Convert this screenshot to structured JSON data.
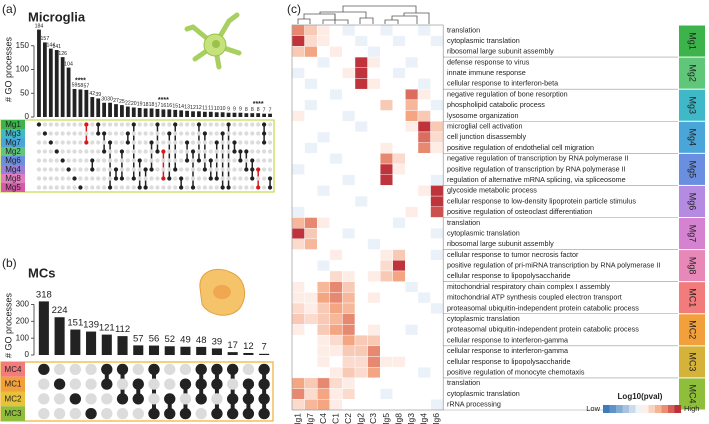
{
  "chart_data": [
    {
      "type": "upset",
      "panel": "(a)",
      "title": "Microglia",
      "y_label": "# GO processes",
      "ylim": [
        0,
        200
      ],
      "yticks": [
        0,
        50,
        100,
        150
      ],
      "values": [
        184,
        157,
        144,
        141,
        126,
        104,
        59,
        58,
        57,
        42,
        39,
        30,
        30,
        27,
        25,
        22,
        20,
        19,
        18,
        18,
        17,
        16,
        16,
        15,
        14,
        13,
        12,
        12,
        11,
        11,
        10,
        10,
        9,
        9,
        9,
        8,
        8,
        8,
        7,
        7
      ],
      "set_names": [
        {
          "name": "Mg1",
          "color": "#3cb44b"
        },
        {
          "name": "Mg3",
          "color": "#3fb8c7"
        },
        {
          "name": "Mg7",
          "color": "#4aa6d8"
        },
        {
          "name": "Mg2",
          "color": "#5fc67a"
        },
        {
          "name": "Mg6",
          "color": "#6a8fe0"
        },
        {
          "name": "Mg4",
          "color": "#9b7fd8"
        },
        {
          "name": "Mg8",
          "color": "#e07fc0"
        },
        {
          "name": "Mg5",
          "color": "#d65aa8"
        }
      ],
      "sets": [
        [
          0
        ],
        [
          1
        ],
        [
          2
        ],
        [
          3
        ],
        [
          4
        ],
        [
          5
        ],
        [
          6
        ],
        [
          7
        ],
        [
          0,
          2
        ],
        [
          4,
          5
        ],
        [
          0,
          1
        ],
        [
          1,
          3
        ],
        [
          2,
          7
        ],
        [
          5,
          6
        ],
        [
          3,
          6
        ],
        [
          1,
          2
        ],
        [
          0,
          6
        ],
        [
          4,
          7
        ],
        [
          5,
          7
        ],
        [
          2,
          5
        ],
        [
          0,
          3
        ],
        [
          3,
          6
        ],
        [
          1,
          6
        ],
        [
          0,
          5
        ],
        [
          6,
          7
        ],
        [
          2,
          4
        ],
        [
          3,
          7
        ],
        [
          0,
          4
        ],
        [
          1,
          5
        ],
        [
          4,
          6
        ],
        [
          2,
          6
        ],
        [
          1,
          7
        ],
        [
          0,
          7
        ],
        [
          2,
          3
        ],
        [
          3,
          4
        ],
        [
          3,
          5
        ],
        [
          4,
          5,
          6
        ],
        [
          5,
          7
        ],
        [
          0,
          1,
          2
        ],
        [
          6,
          7
        ]
      ],
      "highlighted": [
        8,
        21,
        37
      ],
      "highlight_color": "#d7191c",
      "bar_color": "#222222",
      "matrix_border": "#c8d84a",
      "annotations": [
        {
          "text": "****",
          "index": 7
        },
        {
          "text": "****",
          "index": 21
        },
        {
          "text": "****",
          "index": 37
        }
      ]
    },
    {
      "type": "upset",
      "panel": "(b)",
      "title": "MCs",
      "y_label": "# GO processes",
      "ylim": [
        0,
        350
      ],
      "yticks": [
        0,
        100,
        200,
        300
      ],
      "values": [
        318,
        224,
        151,
        139,
        121,
        112,
        57,
        56,
        52,
        49,
        48,
        39,
        17,
        12,
        7
      ],
      "set_names": [
        {
          "name": "MC4",
          "color": "#f27c7c"
        },
        {
          "name": "MC1",
          "color": "#f2a03c"
        },
        {
          "name": "MC2",
          "color": "#e8c23a"
        },
        {
          "name": "MC3",
          "color": "#8fbf3a"
        }
      ],
      "sets": [
        [
          0
        ],
        [
          1
        ],
        [
          2
        ],
        [
          3
        ],
        [
          0,
          1
        ],
        [
          0,
          2
        ],
        [
          1,
          2
        ],
        [
          0,
          3
        ],
        [
          2,
          3
        ],
        [
          1,
          3
        ],
        [
          0,
          1,
          2
        ],
        [
          0,
          1,
          3
        ],
        [
          0,
          2,
          3
        ],
        [
          1,
          2,
          3
        ],
        [
          0,
          1,
          2,
          3
        ]
      ],
      "highlighted": [],
      "highlight_color": "#d7191c",
      "bar_color": "#222222",
      "matrix_border": "#f0b030",
      "annotations": []
    },
    {
      "type": "heatmap",
      "panel": "(c)",
      "legend_title": "Log10(pval)",
      "legend_low": "Low",
      "legend_high": "High",
      "clim": [
        -1,
        1
      ],
      "low_color": "#2c6fb5",
      "high_color": "#b2182b",
      "columns": [
        "Mg1",
        "Mg7",
        "MC4",
        "MC1",
        "MC2",
        "Mg2",
        "MC3",
        "Mg5",
        "Mg8",
        "Mg3",
        "Mg4",
        "Mg6"
      ],
      "groups": [
        {
          "name": "Mg1",
          "color": "#3cb44b",
          "terms": [
            "translation",
            "cytoplasmic translation",
            "ribosomal large subunit assembly"
          ],
          "values": [
            [
              0.6,
              0.3,
              0.1,
              0,
              -0.1,
              0,
              0,
              -0.1,
              0,
              0,
              -0.1,
              0
            ],
            [
              0.9,
              0.2,
              0.1,
              0,
              0,
              -0.1,
              0,
              0,
              -0.1,
              0,
              0,
              -0.1
            ],
            [
              0.3,
              0.5,
              0,
              0.1,
              0,
              0,
              -0.1,
              0,
              0,
              0,
              0,
              0
            ]
          ]
        },
        {
          "name": "Mg2",
          "color": "#5fc67a",
          "terms": [
            "defense response to virus",
            "innate immune response",
            "cellular response to interferon-beta"
          ],
          "values": [
            [
              0,
              0,
              -0.1,
              0,
              0,
              0.9,
              0.1,
              0,
              0,
              -0.1,
              0,
              0
            ],
            [
              -0.1,
              0,
              0,
              0,
              0.1,
              0.9,
              0,
              0,
              -0.1,
              0,
              0,
              0
            ],
            [
              0,
              -0.1,
              0,
              0,
              0,
              0.9,
              0.1,
              0,
              0,
              0,
              -0.1,
              0
            ]
          ]
        },
        {
          "name": "Mg3",
          "color": "#3fb8c7",
          "terms": [
            "negative regulation of bone resorption",
            "phospholipid catabolic process",
            "lysosome organization"
          ],
          "values": [
            [
              0,
              0,
              0,
              -0.1,
              0,
              0,
              0,
              0,
              0,
              0.7,
              0.1,
              0
            ],
            [
              0,
              -0.1,
              0,
              0,
              0,
              0,
              0,
              0.3,
              0,
              0.4,
              0,
              -0.1
            ],
            [
              0.1,
              0,
              0,
              0,
              -0.1,
              0,
              0,
              0,
              0,
              0.5,
              0.3,
              0
            ]
          ]
        },
        {
          "name": "Mg4",
          "color": "#4aa6d8",
          "terms": [
            "microglial cell activation",
            "cell junction disassembly",
            "positive regulation of endothelial cell migration"
          ],
          "values": [
            [
              0,
              0,
              0,
              0,
              0,
              -0.1,
              0,
              0,
              0,
              0.1,
              0.9,
              0.3
            ],
            [
              0,
              0,
              -0.1,
              0,
              0,
              0,
              0,
              0,
              0,
              0,
              0.7,
              0.2
            ],
            [
              0,
              -0.1,
              0,
              0,
              0,
              0,
              0,
              0.1,
              0,
              0,
              0.6,
              0.1
            ]
          ]
        },
        {
          "name": "Mg5",
          "color": "#6a8fe0",
          "terms": [
            "negative regulation of transcription by RNA polymerase II",
            "positive regulation of transcription by RNA polymerase II",
            "regulation of alternative mRNA splicing, via spliceosome"
          ],
          "values": [
            [
              0,
              0,
              0,
              -0.1,
              0,
              0,
              0,
              0.6,
              0.2,
              0,
              0,
              0
            ],
            [
              -0.1,
              0,
              0,
              0,
              0,
              0,
              0,
              0.9,
              0.1,
              0,
              0,
              0
            ],
            [
              0,
              0,
              0,
              0,
              -0.1,
              0,
              0,
              0.9,
              0,
              0,
              0,
              -0.1
            ]
          ]
        },
        {
          "name": "Mg6",
          "color": "#b48be0",
          "terms": [
            "glycoside metabolic process",
            "cellular response to low-density lipoprotein particle stimulus",
            "positive regulation of osteoclast differentiation"
          ],
          "values": [
            [
              0,
              0,
              -0.1,
              0,
              0,
              0,
              0,
              0,
              0,
              0,
              0.1,
              0.9
            ],
            [
              0,
              0,
              0,
              0,
              0,
              -0.1,
              0,
              0,
              0,
              0,
              0,
              0.9
            ],
            [
              -0.1,
              0,
              0,
              0,
              0,
              0,
              0,
              0,
              0,
              0.1,
              0,
              0.8
            ]
          ]
        },
        {
          "name": "Mg7",
          "color": "#d583d0",
          "terms": [
            "translation",
            "cytoplasmic translation",
            "ribosomal large subunit assembly"
          ],
          "values": [
            [
              0.4,
              0.6,
              0.1,
              0,
              0,
              0,
              0,
              0,
              -0.1,
              0,
              0,
              0
            ],
            [
              0.9,
              0.3,
              0,
              0,
              -0.1,
              0,
              0,
              0,
              0,
              0,
              0,
              -0.1
            ],
            [
              0.2,
              0.4,
              0,
              0,
              0,
              0,
              -0.1,
              0,
              0,
              0,
              0,
              0
            ]
          ]
        },
        {
          "name": "Mg8",
          "color": "#e888b8",
          "terms": [
            "cellular response to tumor necrosis factor",
            "positive regulation of pri-miRNA transcription by RNA polymerase II",
            "cellular response to lipopolysaccharide"
          ],
          "values": [
            [
              0,
              0,
              0,
              0.1,
              0,
              0,
              0,
              0.1,
              0.3,
              0,
              0,
              -0.1
            ],
            [
              0,
              0,
              -0.1,
              0,
              0,
              0,
              0,
              0.2,
              0.9,
              0,
              0,
              0
            ],
            [
              0,
              0,
              0,
              0.2,
              0.1,
              0,
              0.1,
              0.3,
              0.5,
              0,
              0,
              0
            ]
          ]
        },
        {
          "name": "MC1",
          "color": "#f27c7c",
          "terms": [
            "mitochondrial respiratory chain complex I assembly",
            "mitochondrial ATP synthesis coupled electron transport",
            "proteasomal ubiquitin-independent protein catabolic process"
          ],
          "values": [
            [
              0.1,
              0,
              0.4,
              0.6,
              0.3,
              0,
              0,
              0,
              0,
              -0.1,
              0,
              0
            ],
            [
              0.1,
              0.1,
              0.5,
              0.6,
              0.4,
              0,
              0.1,
              0,
              0,
              0,
              -0.1,
              0
            ],
            [
              0.2,
              0.1,
              0.3,
              0.5,
              0.4,
              0,
              0,
              0,
              0,
              0,
              0,
              -0.1
            ]
          ]
        },
        {
          "name": "MC2",
          "color": "#f2a03c",
          "terms": [
            "cytoplasmic translation",
            "proteasomal ubiquitin-independent protein catabolic process",
            "cellular response to interferon-gamma"
          ],
          "values": [
            [
              0.3,
              0.2,
              0.3,
              0.4,
              0.6,
              0,
              0,
              0,
              0,
              0,
              0,
              0
            ],
            [
              0.1,
              0,
              0.3,
              0.5,
              0.6,
              0,
              0.1,
              0,
              0,
              -0.1,
              0,
              0
            ],
            [
              0,
              0,
              0.1,
              0.2,
              0.5,
              0.3,
              0.3,
              0,
              0,
              0,
              0,
              0
            ]
          ]
        },
        {
          "name": "MC3",
          "color": "#d5b23a",
          "terms": [
            "cellular response to interferon-gamma",
            "cellular response to lipopolysaccharide",
            "positive regulation of monocyte chemotaxis"
          ],
          "values": [
            [
              0,
              0,
              0.1,
              0.1,
              0.3,
              0.3,
              0.6,
              0,
              0,
              0,
              0,
              0
            ],
            [
              0,
              0,
              0.1,
              0,
              0.2,
              0.2,
              0.6,
              0.1,
              0.1,
              0,
              0,
              0
            ],
            [
              0,
              0,
              0,
              0.1,
              0.3,
              0.2,
              0.5,
              0,
              0,
              0,
              -0.1,
              0
            ]
          ]
        },
        {
          "name": "MC4",
          "color": "#8fbf3a",
          "terms": [
            "translation",
            "cytoplasmic translation",
            "rRNA processing"
          ],
          "values": [
            [
              0.5,
              0.3,
              0.6,
              0.2,
              0.1,
              0,
              0,
              0,
              0,
              0,
              0,
              0
            ],
            [
              0.6,
              0.2,
              0.5,
              0.1,
              0.2,
              0,
              0,
              -0.1,
              0,
              0,
              0,
              0
            ],
            [
              0.2,
              0.4,
              0.5,
              0.1,
              0,
              0,
              0,
              0,
              0,
              0,
              0,
              -0.1
            ]
          ]
        }
      ]
    }
  ]
}
